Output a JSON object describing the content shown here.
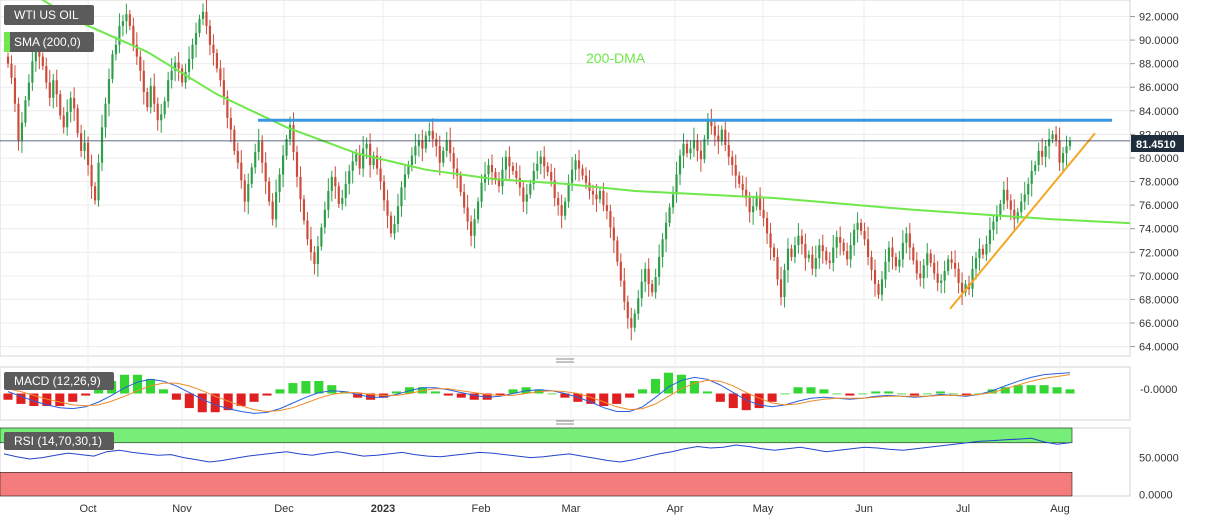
{
  "panels": {
    "main": {
      "label": "WTI US OIL",
      "sma_label": "SMA (200,0)",
      "annotation": "200-DMA",
      "last_price": "81.4510"
    },
    "macd": {
      "label": "MACD (12,26,9)",
      "zero_label": "-0.0000"
    },
    "rsi": {
      "label": "RSI (14,70,30,1)",
      "upper_band": 70,
      "lower_band": 30
    }
  },
  "colors": {
    "candle_up": "#2e9e4a",
    "candle_down": "#cc4b3a",
    "sma": "#6ee84a",
    "resistance": "#3a96de",
    "support": "#f5a623",
    "macd_line": "#2b5fdc",
    "signal_line": "#f08c2a",
    "hist_up": "#33d633",
    "hist_down": "#e02020",
    "rsi_line": "#2244cc",
    "rsi_overbought": "#77ee77",
    "rsi_oversold": "#f47c7c"
  },
  "chart_data": [
    {
      "type": "candlestick",
      "name": "WTI US OIL",
      "x_labels": [
        "Oct",
        "Nov",
        "Dec",
        "2023",
        "Feb",
        "Mar",
        "Apr",
        "May",
        "Jun",
        "Jul",
        "Aug"
      ],
      "y_ticks": [
        "92.0000",
        "90.0000",
        "88.0000",
        "86.0000",
        "84.0000",
        "82.0000",
        "80.0000",
        "78.0000",
        "76.0000",
        "74.0000",
        "72.0000",
        "70.0000",
        "68.0000",
        "66.0000",
        "64.0000"
      ],
      "ylim": [
        63.2,
        93.4
      ],
      "last_value": 81.451,
      "closes": [
        88.0,
        86.8,
        84.6,
        81.5,
        83.0,
        84.9,
        86.4,
        88.2,
        89.0,
        88.6,
        87.8,
        86.4,
        85.1,
        86.6,
        85.4,
        83.6,
        82.6,
        83.9,
        85.1,
        84.2,
        82.1,
        80.6,
        81.3,
        79.4,
        77.6,
        76.4,
        79.6,
        82.6,
        84.6,
        86.7,
        88.8,
        89.6,
        91.2,
        91.6,
        92.2,
        91.2,
        89.6,
        88.6,
        87.4,
        85.6,
        84.3,
        86.1,
        84.6,
        83.2,
        83.7,
        84.8,
        86.6,
        87.4,
        88.1,
        87.6,
        86.4,
        87.3,
        88.4,
        89.6,
        90.6,
        91.8,
        92.4,
        91.2,
        89.6,
        88.9,
        87.6,
        86.6,
        85.2,
        83.4,
        82.4,
        80.6,
        79.6,
        78.1,
        76.3,
        77.8,
        79.2,
        80.5,
        81.4,
        79.6,
        78.0,
        76.3,
        74.8,
        77.1,
        78.6,
        80.2,
        81.6,
        82.8,
        80.5,
        78.4,
        76.5,
        74.7,
        73.1,
        72.0,
        71.0,
        72.5,
        74.1,
        75.6,
        77.2,
        78.4,
        77.6,
        76.1,
        76.6,
        77.8,
        78.9,
        79.7,
        80.4,
        79.1,
        80.8,
        81.2,
        79.4,
        80.2,
        79.1,
        78.0,
        76.4,
        75.1,
        73.6,
        74.4,
        75.9,
        77.5,
        78.6,
        79.4,
        80.2,
        81.0,
        81.5,
        80.8,
        81.9,
        82.3,
        81.6,
        81.0,
        79.6,
        80.6,
        81.5,
        80.4,
        79.1,
        78.5,
        77.1,
        75.8,
        74.6,
        73.4,
        74.8,
        76.3,
        77.9,
        78.6,
        79.4,
        78.8,
        78.1,
        77.6,
        79.0,
        80.1,
        79.3,
        78.9,
        78.3,
        77.5,
        76.3,
        76.9,
        77.8,
        78.9,
        79.5,
        80.1,
        79.3,
        78.8,
        78.1,
        76.6,
        76.0,
        75.1,
        76.3,
        77.9,
        79.0,
        79.8,
        79.1,
        78.5,
        77.9,
        77.2,
        76.9,
        76.5,
        77.2,
        76.0,
        75.5,
        74.1,
        73.0,
        71.2,
        69.6,
        67.8,
        66.4,
        65.6,
        66.8,
        68.1,
        69.5,
        70.6,
        69.3,
        68.6,
        69.9,
        71.6,
        73.1,
        74.5,
        75.8,
        76.9,
        78.6,
        80.2,
        81.2,
        80.4,
        80.8,
        81.5,
        80.6,
        79.9,
        81.6,
        83.1,
        82.7,
        81.9,
        81.4,
        82.4,
        81.1,
        80.1,
        79.4,
        78.5,
        77.8,
        77.3,
        76.6,
        75.4,
        75.9,
        76.8,
        75.6,
        74.9,
        73.6,
        72.4,
        71.6,
        69.7,
        68.2,
        70.5,
        72.3,
        71.6,
        72.6,
        73.4,
        72.7,
        71.5,
        71.8,
        70.6,
        71.5,
        72.6,
        72.1,
        71.3,
        71.1,
        72.4,
        73.3,
        72.8,
        72.1,
        71.4,
        72.6,
        73.9,
        74.5,
        73.8,
        73.1,
        71.6,
        70.5,
        69.3,
        68.4,
        69.7,
        71.2,
        72.4,
        71.6,
        70.8,
        71.4,
        72.8,
        73.6,
        72.4,
        71.3,
        70.2,
        69.8,
        70.9,
        71.9,
        71.1,
        70.2,
        69.4,
        69.6,
        70.4,
        71.4,
        71.1,
        70.6,
        69.4,
        68.6,
        69.3,
        68.9,
        70.6,
        71.5,
        72.3,
        71.8,
        72.7,
        73.9,
        74.6,
        75.1,
        76.1,
        77.3,
        76.4,
        75.6,
        74.8,
        75.4,
        76.3,
        76.9,
        77.8,
        78.9,
        79.4,
        80.6,
        80.1,
        81.0,
        81.6,
        82.0,
        81.5,
        79.6,
        80.4,
        81.0,
        81.45
      ],
      "sma_200": [
        [
          0,
          95.2
        ],
        [
          20,
          91.6
        ],
        [
          40,
          89.0
        ],
        [
          60,
          85.4
        ],
        [
          80,
          82.6
        ],
        [
          100,
          80.4
        ],
        [
          120,
          79.0
        ],
        [
          140,
          78.2
        ],
        [
          160,
          77.8
        ],
        [
          180,
          77.2
        ],
        [
          200,
          76.9
        ],
        [
          220,
          76.6
        ],
        [
          240,
          76.1
        ],
        [
          260,
          75.6
        ],
        [
          280,
          75.2
        ],
        [
          300,
          74.8
        ],
        [
          320,
          74.5
        ],
        [
          330,
          74.4
        ]
      ],
      "resistance_line": [
        83.2,
        83.2
      ],
      "support_line": [
        67.2,
        82.1
      ]
    },
    {
      "type": "macd",
      "name": "MACD (12,26,9)",
      "macd": [
        0.2,
        -0.3,
        -0.8,
        -1.2,
        -1.5,
        -1.6,
        -1.4,
        -0.9,
        -0.2,
        0.6,
        1.2,
        1.5,
        1.3,
        0.8,
        0.1,
        -0.6,
        -1.2,
        -1.6,
        -1.9,
        -2.1,
        -2.0,
        -1.6,
        -1.0,
        -0.4,
        0.1,
        0.3,
        0.2,
        -0.1,
        -0.4,
        -0.4,
        -0.1,
        0.3,
        0.6,
        0.6,
        0.4,
        0.1,
        -0.2,
        -0.4,
        -0.3,
        0.0,
        0.3,
        0.4,
        0.3,
        0.0,
        -0.4,
        -0.9,
        -1.5,
        -1.9,
        -1.9,
        -1.4,
        -0.4,
        0.7,
        1.4,
        1.7,
        1.5,
        0.9,
        0.1,
        -0.7,
        -1.2,
        -1.4,
        -1.2,
        -0.8,
        -0.5,
        -0.4,
        -0.5,
        -0.6,
        -0.5,
        -0.3,
        -0.2,
        -0.3,
        -0.4,
        -0.3,
        -0.1,
        -0.2,
        -0.3,
        -0.1,
        0.3,
        0.8,
        1.3,
        1.7,
        2.0,
        2.1,
        2.2
      ],
      "signal": [
        0.5,
        0.2,
        -0.2,
        -0.6,
        -0.9,
        -1.2,
        -1.3,
        -1.2,
        -0.8,
        -0.3,
        0.3,
        0.8,
        1.1,
        1.1,
        0.8,
        0.3,
        -0.3,
        -0.8,
        -1.3,
        -1.7,
        -1.9,
        -1.8,
        -1.5,
        -1.0,
        -0.5,
        -0.1,
        0.1,
        0.1,
        -0.1,
        -0.2,
        -0.2,
        0.0,
        0.3,
        0.5,
        0.5,
        0.3,
        0.1,
        -0.1,
        -0.2,
        -0.2,
        0.0,
        0.2,
        0.3,
        0.2,
        0.0,
        -0.4,
        -0.9,
        -1.4,
        -1.7,
        -1.6,
        -1.1,
        -0.3,
        0.5,
        1.1,
        1.4,
        1.3,
        0.8,
        0.1,
        -0.5,
        -1.0,
        -1.2,
        -1.1,
        -0.8,
        -0.6,
        -0.5,
        -0.5,
        -0.5,
        -0.4,
        -0.3,
        -0.3,
        -0.3,
        -0.3,
        -0.2,
        -0.2,
        -0.2,
        -0.1,
        0.1,
        0.5,
        0.9,
        1.3,
        1.6,
        1.8,
        2.0
      ]
    },
    {
      "type": "rsi",
      "name": "RSI (14,70,30,1)",
      "ylim": [
        -2,
        90
      ],
      "y_ticks": [
        "50.0000",
        "0.0000"
      ],
      "values": [
        55,
        51,
        48,
        50,
        53,
        56,
        54,
        52,
        58,
        60,
        57,
        55,
        53,
        54,
        50,
        47,
        44,
        46,
        49,
        52,
        54,
        56,
        58,
        55,
        53,
        56,
        58,
        55,
        52,
        53,
        55,
        57,
        54,
        52,
        51,
        53,
        55,
        57,
        56,
        54,
        52,
        50,
        51,
        53,
        55,
        52,
        49,
        46,
        44,
        47,
        51,
        55,
        58,
        62,
        65,
        63,
        64,
        67,
        65,
        62,
        60,
        62,
        64,
        61,
        58,
        60,
        62,
        64,
        63,
        61,
        60,
        62,
        64,
        66,
        68,
        70,
        72,
        73,
        74,
        75,
        76,
        71,
        68,
        70
      ]
    }
  ]
}
